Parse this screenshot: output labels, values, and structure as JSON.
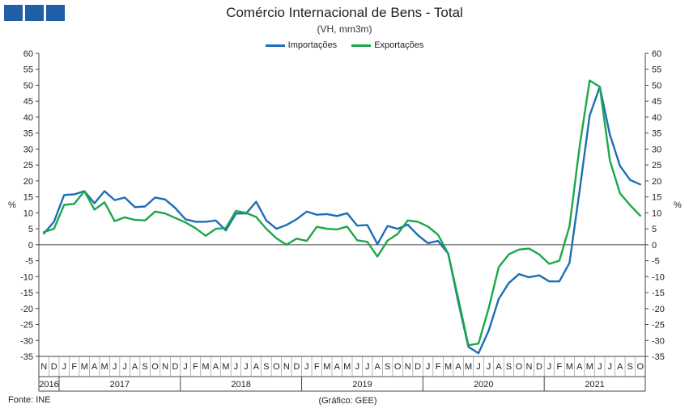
{
  "chart_data": {
    "type": "line",
    "title": "Comércio Internacional de Bens - Total",
    "subtitle": "(VH, mm3m)",
    "ylabel_left": "%",
    "ylabel_right": "%",
    "ylim": [
      -35,
      60
    ],
    "yticks": [
      60,
      55,
      50,
      45,
      40,
      35,
      30,
      25,
      20,
      15,
      10,
      5,
      0,
      -5,
      -10,
      -15,
      -20,
      -25,
      -30,
      -35
    ],
    "grid": false,
    "legend_position": "top-center",
    "months": [
      "N",
      "D",
      "J",
      "F",
      "M",
      "A",
      "M",
      "J",
      "J",
      "A",
      "S",
      "O",
      "N",
      "D",
      "J",
      "F",
      "M",
      "A",
      "M",
      "J",
      "J",
      "A",
      "S",
      "O",
      "N",
      "D",
      "J",
      "F",
      "M",
      "A",
      "M",
      "J",
      "J",
      "A",
      "S",
      "O",
      "N",
      "D",
      "J",
      "F",
      "M",
      "A",
      "M",
      "J",
      "J",
      "A",
      "S",
      "O",
      "N",
      "D",
      "J",
      "F",
      "M",
      "A",
      "M",
      "J",
      "J",
      "A",
      "S",
      "O"
    ],
    "years": [
      {
        "label": "2016",
        "start": 0,
        "end": 1
      },
      {
        "label": "2017",
        "start": 2,
        "end": 13
      },
      {
        "label": "2018",
        "start": 14,
        "end": 25
      },
      {
        "label": "2019",
        "start": 26,
        "end": 37
      },
      {
        "label": "2020",
        "start": 38,
        "end": 49
      },
      {
        "label": "2021",
        "start": 50,
        "end": 59
      }
    ],
    "series": [
      {
        "name": "Importações",
        "color": "#1f6db5",
        "values": [
          3.5,
          7.2,
          15.6,
          15.8,
          16.8,
          13.0,
          16.8,
          14.0,
          14.8,
          11.8,
          12.0,
          14.8,
          14.2,
          11.5,
          8.0,
          7.2,
          7.2,
          7.6,
          4.5,
          9.8,
          9.8,
          13.5,
          7.6,
          5.0,
          6.2,
          8.0,
          10.4,
          9.4,
          9.6,
          9.0,
          9.9,
          6.0,
          6.2,
          0.2,
          5.9,
          5.0,
          6.3,
          3.0,
          0.5,
          1.2,
          -2.8,
          -18.0,
          -32.0,
          -34.0,
          -27.0,
          -17.0,
          -12.0,
          -9.2,
          -10.2,
          -9.6,
          -11.5,
          -11.5,
          -5.7,
          17.0,
          40.5,
          49.5,
          34.5,
          24.7,
          20.3,
          18.9
        ]
      },
      {
        "name": "Exportações",
        "color": "#1aa84a",
        "values": [
          4.0,
          5.0,
          12.5,
          12.8,
          16.8,
          11.0,
          13.3,
          7.4,
          8.6,
          7.8,
          7.6,
          10.4,
          9.8,
          8.4,
          7.0,
          5.2,
          2.8,
          5.0,
          5.2,
          10.6,
          10.0,
          8.7,
          5.0,
          2.0,
          0.0,
          1.9,
          1.2,
          5.6,
          5.0,
          4.8,
          5.7,
          1.4,
          0.9,
          -3.7,
          1.3,
          3.4,
          7.6,
          7.2,
          5.7,
          3.1,
          -2.8,
          -17.0,
          -31.5,
          -31.0,
          -20.0,
          -7.0,
          -3.0,
          -1.5,
          -1.2,
          -3.0,
          -6.0,
          -5.0,
          5.8,
          30.8,
          51.5,
          49.5,
          26.4,
          16.1,
          12.4,
          9.1
        ]
      }
    ],
    "source": "Fonte: INE",
    "credit": "(Gráfico: GEE)"
  }
}
